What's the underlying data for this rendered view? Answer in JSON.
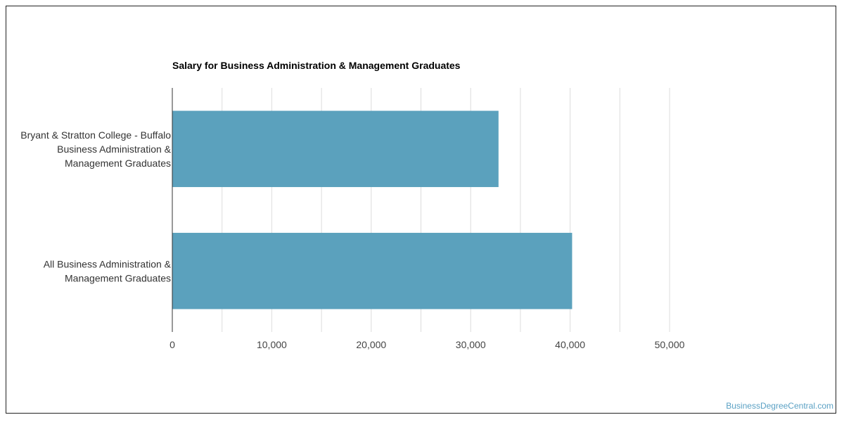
{
  "chart_data": {
    "type": "bar",
    "orientation": "horizontal",
    "title": "Salary for Business Administration & Management Graduates",
    "categories": [
      [
        "Bryant & Stratton College - Buffalo",
        "Business Administration &",
        "Management Graduates"
      ],
      [
        "All Business Administration &",
        "Management Graduates"
      ]
    ],
    "values": [
      32800,
      40200
    ],
    "xlim": [
      0,
      50000
    ],
    "xticks": [
      0,
      10000,
      20000,
      30000,
      40000,
      50000
    ],
    "xtick_labels": [
      "0",
      "10,000",
      "20,000",
      "30,000",
      "40,000",
      "50,000"
    ],
    "grid": true,
    "bar_color": "#5ba1bd"
  },
  "watermark": "BusinessDegreeCentral.com"
}
